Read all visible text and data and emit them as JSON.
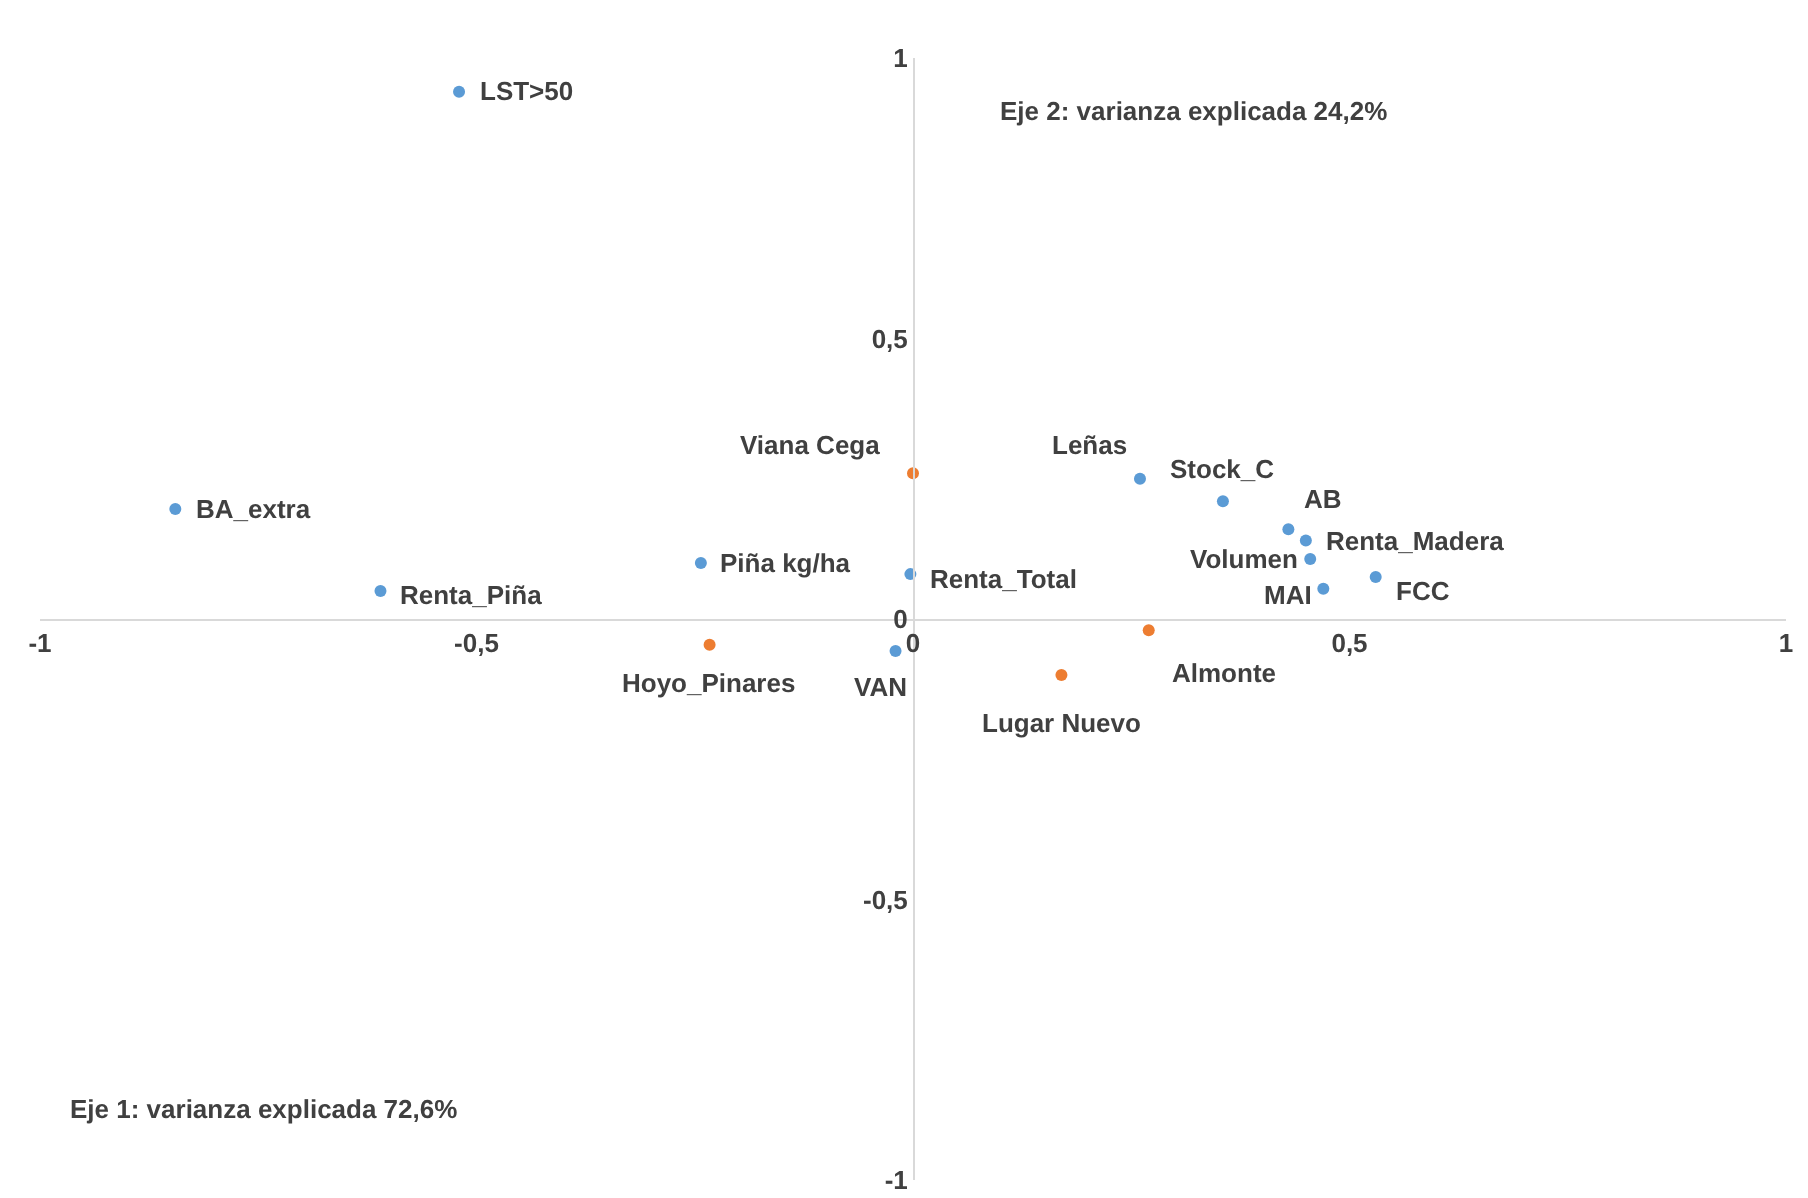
{
  "chart_data": {
    "type": "scatter",
    "series": [
      {
        "color": "#5b9bd5",
        "x": [
          -0.52,
          -0.845,
          -0.61,
          -0.243,
          -0.003,
          -0.02,
          0.26,
          0.355,
          0.43,
          0.45,
          0.455,
          0.47,
          0.53
        ],
        "values": [
          0.94,
          0.196,
          0.05,
          0.1,
          0.08,
          -0.057,
          0.25,
          0.21,
          0.16,
          0.14,
          0.107,
          0.054,
          0.075
        ]
      },
      {
        "color": "#ed7d31",
        "x": [
          0.0,
          -0.233,
          0.27,
          0.17
        ],
        "values": [
          0.26,
          -0.046,
          -0.02,
          -0.1
        ]
      }
    ],
    "annotations": [
      "Eje 2: varianza explicada 24,2%",
      "Eje 1: varianza explicada 72,6%",
      {
        "text": "LST>50",
        "x": -0.52,
        "y": 0.94
      },
      {
        "text": "BA_extra",
        "x": -0.845,
        "y": 0.196
      },
      {
        "text": "Renta_Piña",
        "x": -0.61,
        "y": 0.05
      },
      {
        "text": "Piña kg/ha",
        "x": -0.243,
        "y": 0.1
      },
      {
        "text": "Renta_Total",
        "x": -0.003,
        "y": 0.08
      },
      {
        "text": "VAN",
        "x": -0.02,
        "y": -0.057
      },
      {
        "text": "Leñas",
        "x": 0.26,
        "y": 0.25
      },
      {
        "text": "Stock_C",
        "x": 0.355,
        "y": 0.21
      },
      {
        "text": "AB",
        "x": 0.43,
        "y": 0.16
      },
      {
        "text": "Renta_Madera",
        "x": 0.45,
        "y": 0.14
      },
      {
        "text": "Volumen",
        "x": 0.455,
        "y": 0.107
      },
      {
        "text": "MAI",
        "x": 0.47,
        "y": 0.054
      },
      {
        "text": "FCC",
        "x": 0.53,
        "y": 0.075
      },
      {
        "text": "Viana Cega",
        "x": 0.0,
        "y": 0.26
      },
      {
        "text": "Hoyo_Pinares",
        "x": -0.233,
        "y": -0.046
      },
      {
        "text": "Almonte",
        "x": 0.27,
        "y": -0.02
      },
      {
        "text": "Lugar Nuevo",
        "x": 0.17,
        "y": -0.1
      }
    ],
    "xlim": [
      -1,
      1
    ],
    "xticks": [
      -1,
      {
        "value": -0.5,
        "label": "-0,5"
      },
      0,
      {
        "value": 0.5,
        "label": "0,5"
      },
      1
    ],
    "ylim": [
      -1,
      1
    ],
    "yticks": [
      -1,
      {
        "value": -0.5,
        "label": "-0,5"
      },
      0,
      {
        "value": 0.5,
        "label": "0,5"
      },
      1
    ],
    "marker": "circle"
  }
}
